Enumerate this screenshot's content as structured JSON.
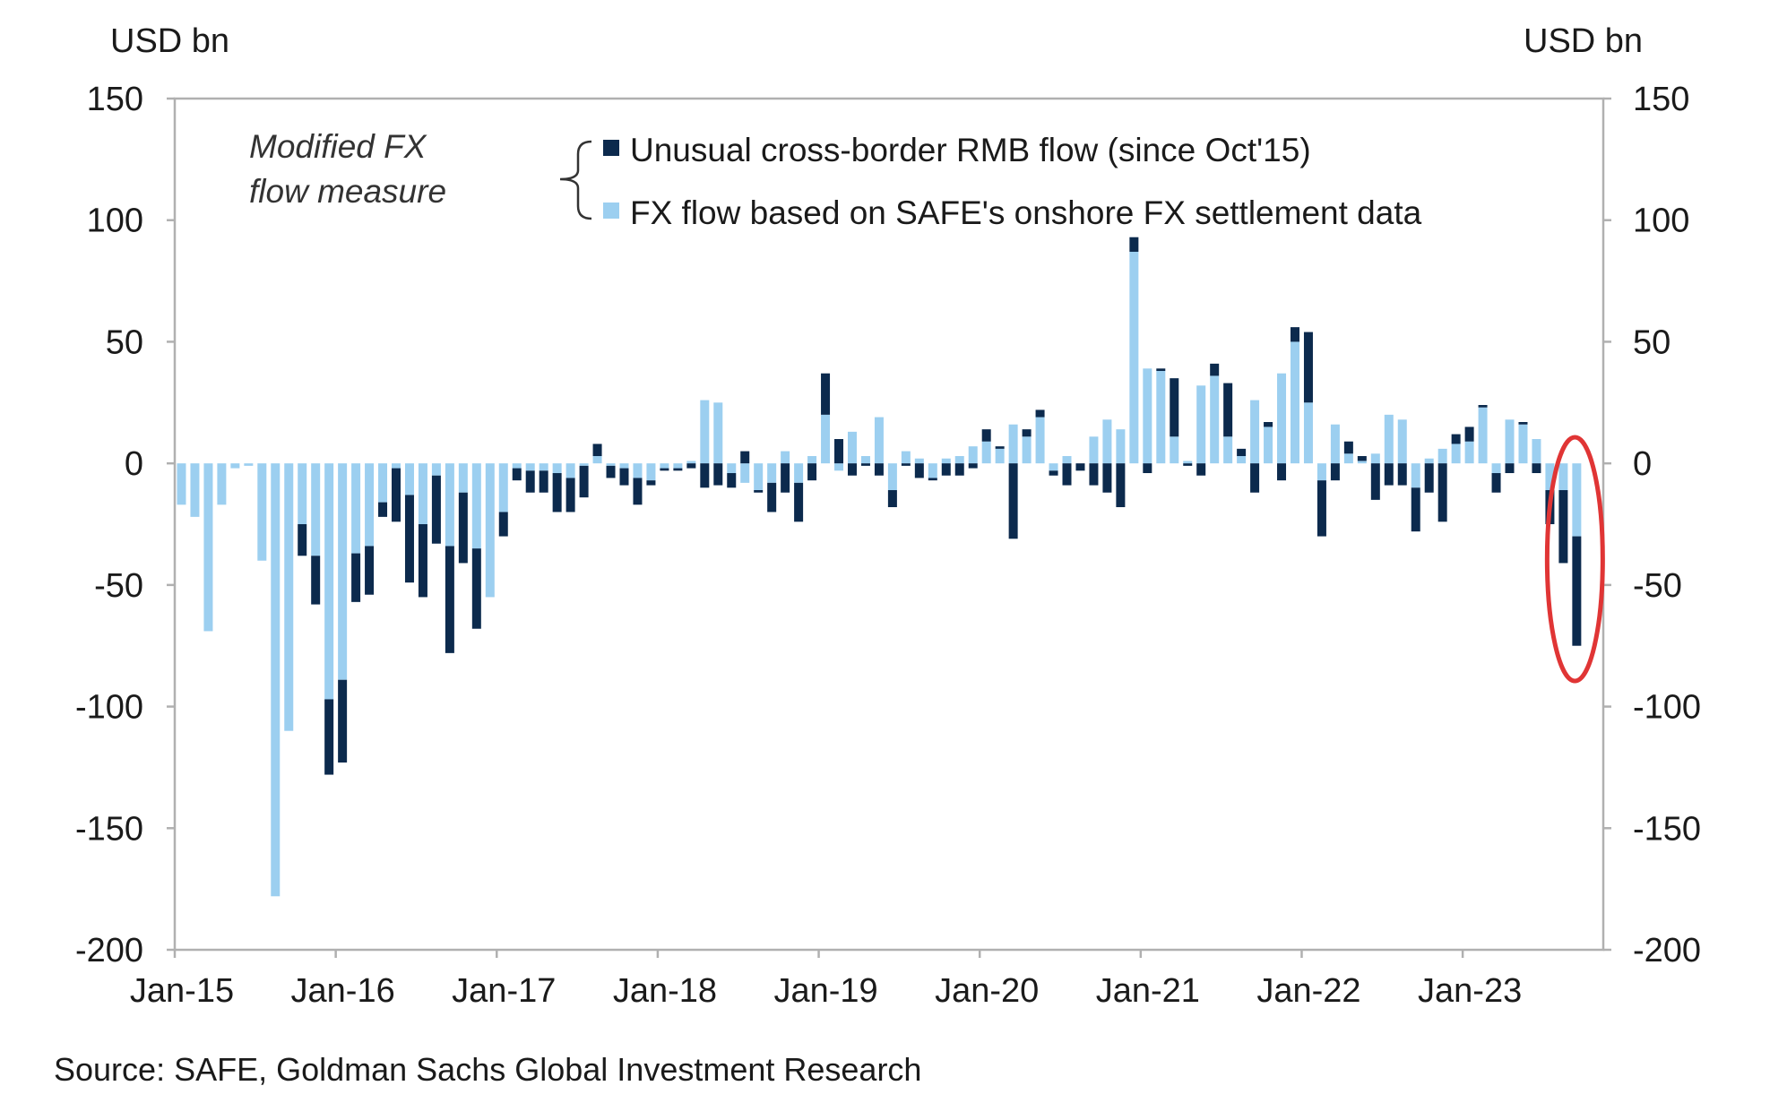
{
  "chart_data": {
    "type": "bar",
    "stacked": true,
    "title": "",
    "ylabel_left": "USD bn",
    "ylabel_right": "USD bn",
    "ylim": [
      -200,
      150
    ],
    "yticks": [
      "150",
      "100",
      "50",
      "0",
      "-50",
      "-100",
      "-150",
      "-200"
    ],
    "ytick_values": [
      150,
      100,
      50,
      0,
      -50,
      -100,
      -150,
      -200
    ],
    "xtick_labels": [
      "Jan-15",
      "Jan-16",
      "Jan-17",
      "Jan-18",
      "Jan-19",
      "Jan-20",
      "Jan-21",
      "Jan-22",
      "Jan-23"
    ],
    "xtick_month_index": [
      0,
      12,
      24,
      36,
      48,
      60,
      72,
      84,
      96
    ],
    "x_start": "Jan-15",
    "frequency": "monthly",
    "annotation": "Modified FX flow measure",
    "highlight": {
      "type": "ellipse",
      "month_index": 104,
      "color": "#e03535"
    },
    "legend_position": "top",
    "series": [
      {
        "name": "Unusual cross-border RMB flow (since Oct'15)",
        "color": "#0c2a4d",
        "values": [
          0,
          0,
          0,
          0,
          0,
          0,
          0,
          0,
          0,
          -13,
          -20,
          -31,
          -34,
          -20,
          -20,
          -6,
          -22,
          -36,
          -30,
          -28,
          -44,
          -29,
          -33,
          0,
          -10,
          -5,
          -9,
          -9,
          -16,
          -14,
          -13,
          5,
          -5,
          -7,
          -11,
          -2,
          -1,
          -1,
          -2,
          -10,
          -9,
          -6,
          5,
          -1,
          -12,
          -12,
          -16,
          -7,
          17,
          10,
          -5,
          -1,
          -5,
          -7,
          -1,
          -6,
          -1,
          -5,
          -5,
          -2,
          5,
          1,
          -31,
          3,
          3,
          -2,
          -9,
          -3,
          -9,
          -12,
          -18,
          6,
          -4,
          1,
          24,
          -1,
          -5,
          5,
          22,
          3,
          -12,
          2,
          -7,
          6,
          29,
          -23,
          -7,
          5,
          2,
          -15,
          -9,
          -9,
          -18,
          -12,
          -24,
          4,
          6,
          1,
          -8,
          -4,
          1,
          -4,
          -14,
          -30,
          -45
        ]
      },
      {
        "name": "FX flow based on SAFE's onshore FX settlement data",
        "color": "#9ccff0",
        "values": [
          -17,
          -22,
          -69,
          -17,
          -2,
          -1,
          -40,
          -178,
          -110,
          -25,
          -38,
          -97,
          -89,
          -37,
          -34,
          -16,
          -2,
          -13,
          -25,
          -5,
          -34,
          -12,
          -35,
          -55,
          -20,
          -2,
          -3,
          -3,
          -4,
          -6,
          -1,
          3,
          -1,
          -2,
          -6,
          -7,
          -2,
          -2,
          1,
          26,
          25,
          -4,
          -8,
          -11,
          -8,
          5,
          -8,
          3,
          20,
          -3,
          13,
          3,
          19,
          -11,
          5,
          2,
          -6,
          2,
          3,
          7,
          9,
          6,
          16,
          11,
          19,
          -3,
          3,
          0,
          11,
          18,
          14,
          87,
          39,
          38,
          11,
          1,
          32,
          36,
          11,
          3,
          26,
          15,
          37,
          50,
          25,
          -7,
          16,
          4,
          1,
          4,
          20,
          18,
          -10,
          2,
          6,
          8,
          9,
          23,
          -4,
          18,
          16,
          10,
          -11,
          -11,
          -30
        ]
      }
    ]
  },
  "source": "Source: SAFE, Goldman Sachs Global Investment Research"
}
